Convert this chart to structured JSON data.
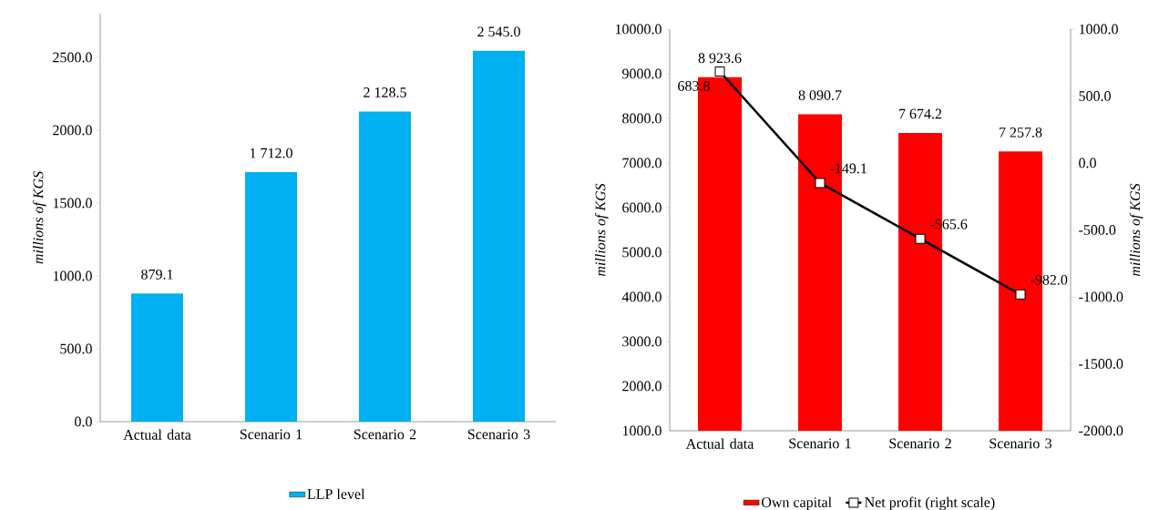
{
  "chart_data": [
    {
      "type": "bar",
      "categories": [
        "Actual data",
        "Scenario 1",
        "Scenario 2",
        "Scenario 3"
      ],
      "ylabel": "millions of KGS",
      "series": [
        {
          "name": "LLP level",
          "color": "#00b0f0",
          "values": [
            879.1,
            1712.0,
            2128.5,
            2545.0
          ],
          "value_labels": [
            "879.1",
            "1 712.0",
            "2 128.5",
            "2 545.0"
          ]
        }
      ],
      "ylim": [
        0,
        2800
      ],
      "yticks": [
        {
          "value": 0,
          "label": "0.0"
        },
        {
          "value": 500,
          "label": "500.0"
        },
        {
          "value": 1000,
          "label": "1000.0"
        },
        {
          "value": 1500,
          "label": "1500.0"
        },
        {
          "value": 2000,
          "label": "2000.0"
        },
        {
          "value": 2500,
          "label": "2500.0"
        }
      ],
      "legend": "bottom"
    },
    {
      "type": "bar",
      "categories": [
        "Actual data",
        "Scenario 1",
        "Scenario 2",
        "Scenario 3"
      ],
      "ylabel": "millions of KGS",
      "y2label": "millions of KGS",
      "series": [
        {
          "name": "Own capital",
          "color": "#ff0000",
          "values": [
            8923.6,
            8090.7,
            7674.2,
            7257.8
          ],
          "value_labels": [
            "8 923.6",
            "8 090.7",
            "7 674.2",
            "7 257.8"
          ]
        },
        {
          "name": "Net profit (right scale)",
          "type": "line",
          "axis": "y2",
          "color": "#000000",
          "marker": "square",
          "values": [
            683.8,
            -149.1,
            -565.6,
            -982.0
          ],
          "value_labels": [
            "683.8",
            "-149.1",
            "-565.6",
            "-982.0"
          ]
        }
      ],
      "ylim": [
        1000,
        10000
      ],
      "yticks": [
        {
          "value": 1000,
          "label": "1000.0"
        },
        {
          "value": 2000,
          "label": "2000.0"
        },
        {
          "value": 3000,
          "label": "3000.0"
        },
        {
          "value": 4000,
          "label": "4000.0"
        },
        {
          "value": 5000,
          "label": "5000.0"
        },
        {
          "value": 6000,
          "label": "6000.0"
        },
        {
          "value": 7000,
          "label": "7000.0"
        },
        {
          "value": 8000,
          "label": "8000.0"
        },
        {
          "value": 9000,
          "label": "9000.0"
        },
        {
          "value": 10000,
          "label": "10000.0"
        }
      ],
      "y2lim": [
        -2000,
        1000
      ],
      "y2ticks": [
        {
          "value": -2000,
          "label": "-2000.0"
        },
        {
          "value": -1500,
          "label": "-1500.0"
        },
        {
          "value": -1000,
          "label": "-1000.0"
        },
        {
          "value": -500,
          "label": "-500.0"
        },
        {
          "value": 0,
          "label": "0.0"
        },
        {
          "value": 500,
          "label": "500.0"
        },
        {
          "value": 1000,
          "label": "1000.0"
        }
      ],
      "legend": "bottom"
    }
  ]
}
